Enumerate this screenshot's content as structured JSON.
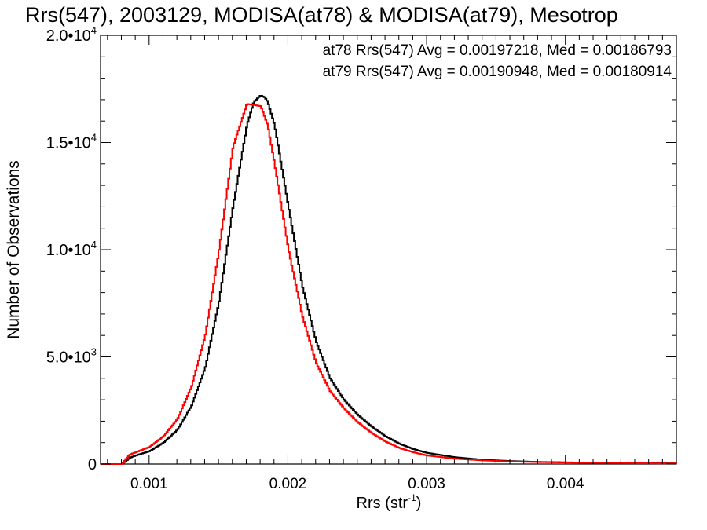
{
  "chart_data": {
    "type": "line",
    "title": "Rrs(547), 2003129, MODISA(at78) & MODISA(at79), Mesotrop",
    "xlabel": "Rrs (str",
    "xlabel_sup": "-1",
    "xlabel_suffix": ")",
    "ylabel": "Number of Observations",
    "xlim": [
      0.00065,
      0.0048
    ],
    "ylim": [
      0,
      20000
    ],
    "xticks": [
      {
        "value": 0.001,
        "label": "0.001"
      },
      {
        "value": 0.002,
        "label": "0.002"
      },
      {
        "value": 0.003,
        "label": "0.003"
      },
      {
        "value": 0.004,
        "label": "0.004"
      }
    ],
    "yticks": [
      {
        "value": 0,
        "label": "0",
        "sup": ""
      },
      {
        "value": 5000,
        "label": "5.0•10",
        "sup": "3"
      },
      {
        "value": 10000,
        "label": "1.0•10",
        "sup": "4"
      },
      {
        "value": 15000,
        "label": "1.5•10",
        "sup": "4"
      },
      {
        "value": 20000,
        "label": "2.0•10",
        "sup": "4"
      }
    ],
    "annotations": [
      {
        "text": "at78 Rrs(547) Avg = 0.00197218, Med = 0.00186793",
        "color": "#000000"
      },
      {
        "text": "at79 Rrs(547) Avg = 0.00190948, Med = 0.00180914",
        "color": "#ff0000"
      }
    ],
    "grid": false,
    "series": [
      {
        "name": "at78",
        "color": "#000000",
        "x": [
          0.00065,
          0.0008,
          0.00083,
          0.00086,
          0.0009,
          0.001,
          0.0011,
          0.0012,
          0.0013,
          0.0014,
          0.0015,
          0.0016,
          0.0017,
          0.00175,
          0.0018,
          0.00183,
          0.00185,
          0.0019,
          0.002,
          0.0021,
          0.0022,
          0.0023,
          0.0024,
          0.0025,
          0.0026,
          0.0027,
          0.0028,
          0.0029,
          0.003,
          0.0032,
          0.0034,
          0.0036,
          0.0038,
          0.004,
          0.0042,
          0.0044,
          0.0046,
          0.0048
        ],
        "y": [
          0,
          0,
          150,
          300,
          400,
          600,
          1000,
          1600,
          2700,
          4500,
          7600,
          12000,
          15800,
          16900,
          17200,
          17100,
          16900,
          15800,
          12000,
          8300,
          5700,
          4000,
          3000,
          2300,
          1750,
          1300,
          950,
          700,
          520,
          320,
          200,
          140,
          100,
          80,
          60,
          50,
          40,
          30
        ]
      },
      {
        "name": "at79",
        "color": "#ff0000",
        "x": [
          0.00065,
          0.0008,
          0.00083,
          0.00086,
          0.0009,
          0.001,
          0.0011,
          0.0012,
          0.0013,
          0.0014,
          0.0015,
          0.0016,
          0.0017,
          0.0018,
          0.00185,
          0.0019,
          0.002,
          0.0021,
          0.0022,
          0.0023,
          0.0024,
          0.0025,
          0.0026,
          0.0027,
          0.0028,
          0.0029,
          0.003,
          0.0032,
          0.0034,
          0.0036,
          0.0038,
          0.004,
          0.0042,
          0.0044,
          0.0046,
          0.0048
        ],
        "y": [
          0,
          0,
          250,
          450,
          550,
          800,
          1300,
          2100,
          3600,
          6000,
          10000,
          14800,
          16800,
          16700,
          15800,
          14000,
          10000,
          6900,
          4700,
          3400,
          2600,
          1950,
          1450,
          1050,
          750,
          550,
          400,
          250,
          170,
          120,
          90,
          70,
          55,
          45,
          35,
          25
        ]
      }
    ]
  }
}
